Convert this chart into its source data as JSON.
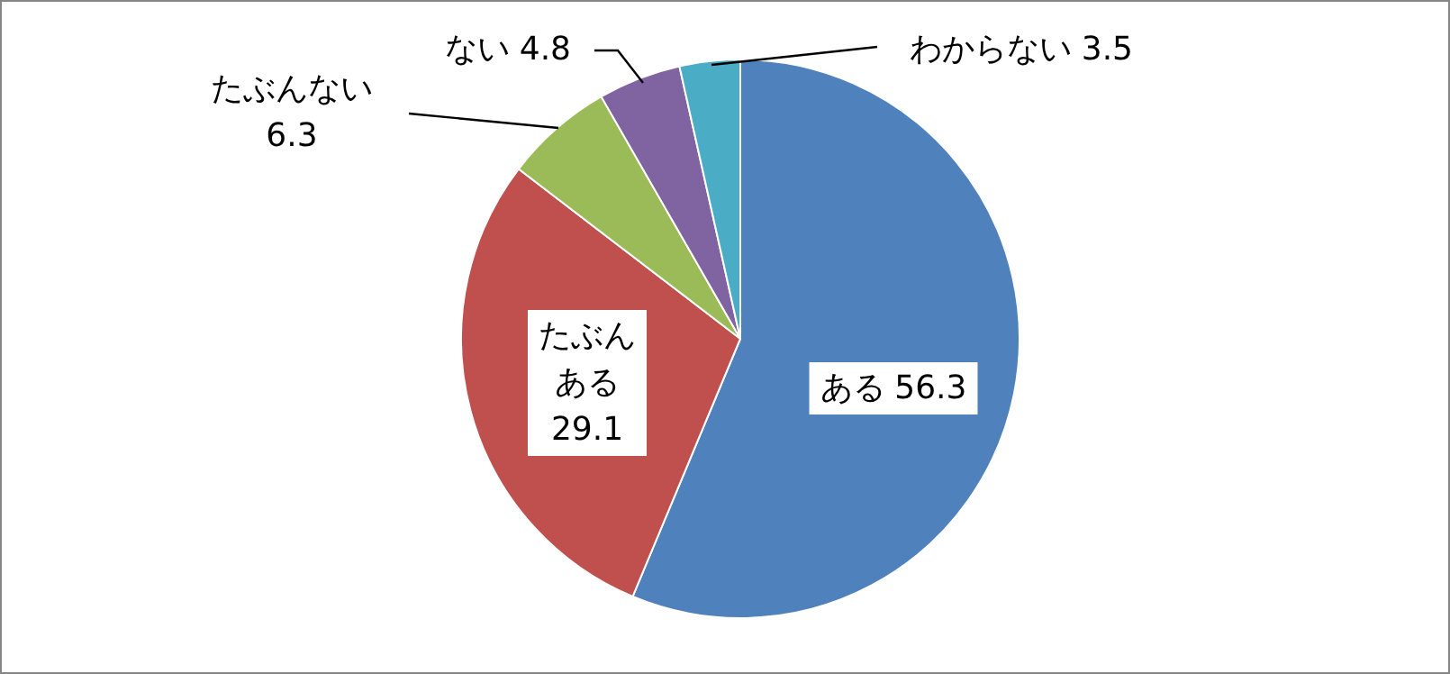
{
  "chart_data": {
    "type": "pie",
    "categories": [
      "ある",
      "たぶんある",
      "たぶんない",
      "ない",
      "わからない"
    ],
    "values": [
      56.3,
      29.1,
      6.3,
      4.8,
      3.5
    ],
    "colors": [
      "#4f81bd",
      "#c0504d",
      "#9bbb59",
      "#8064a2",
      "#4bacc6"
    ],
    "data_labels": true
  }
}
